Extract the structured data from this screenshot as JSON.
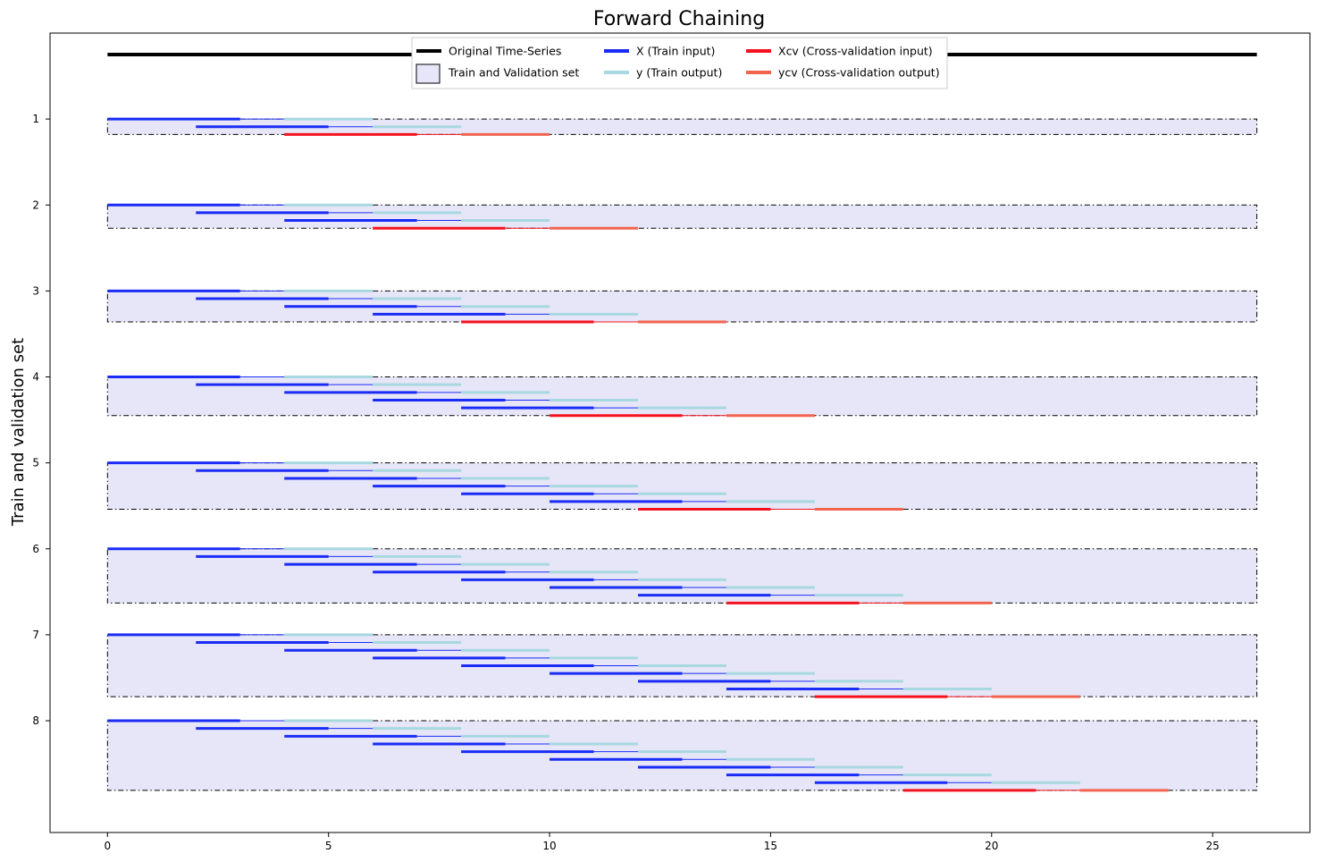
{
  "chart_data": {
    "type": "line",
    "title": "Forward Chaining",
    "xlabel": "",
    "ylabel": "Train and validation set",
    "xlim": [
      -1.3,
      27.2
    ],
    "ylim": [
      0.0,
      9.3
    ],
    "y_inverted": true,
    "xticks": [
      0,
      5,
      10,
      15,
      20,
      25
    ],
    "yticks": [
      1,
      2,
      3,
      4,
      5,
      6,
      7,
      8
    ],
    "grid": false,
    "legend_position": "top-center",
    "legend": [
      {
        "label": "Original Time-Series",
        "key": "original",
        "color": "#000000"
      },
      {
        "label": "Train and Validation set",
        "key": "box",
        "color": "#e6e6f8"
      },
      {
        "label": "X (Train input)",
        "key": "train_input",
        "color": "#1a2cf5"
      },
      {
        "label": "y (Train output)",
        "key": "train_output",
        "color": "#a8d8e0"
      },
      {
        "label": "Xcv (Cross-validation input)",
        "key": "cv_input",
        "color": "#f5121e"
      },
      {
        "label": "ycv (Cross-validation output)",
        "key": "cv_output",
        "color": "#f26450"
      }
    ],
    "colors": {
      "original": "#000000",
      "train_input": "#1a2cf5",
      "train_output": "#a8d8e0",
      "cv_input": "#f5121e",
      "cv_output": "#f26450",
      "box_fill": "#e6e6f8",
      "box_edge": "#000000"
    },
    "original_series": {
      "x": [
        0,
        26
      ],
      "y": 0.25
    },
    "window": {
      "input_length": 3,
      "gap": 1,
      "output_length": 2,
      "stride": 2
    },
    "sets": [
      {
        "set": 1,
        "num_train_windows": 2
      },
      {
        "set": 2,
        "num_train_windows": 3
      },
      {
        "set": 3,
        "num_train_windows": 4
      },
      {
        "set": 4,
        "num_train_windows": 5
      },
      {
        "set": 5,
        "num_train_windows": 6
      },
      {
        "set": 6,
        "num_train_windows": 7
      },
      {
        "set": 7,
        "num_train_windows": 8
      },
      {
        "set": 8,
        "num_train_windows": 9
      }
    ],
    "set_box_x": [
      0,
      26
    ]
  }
}
